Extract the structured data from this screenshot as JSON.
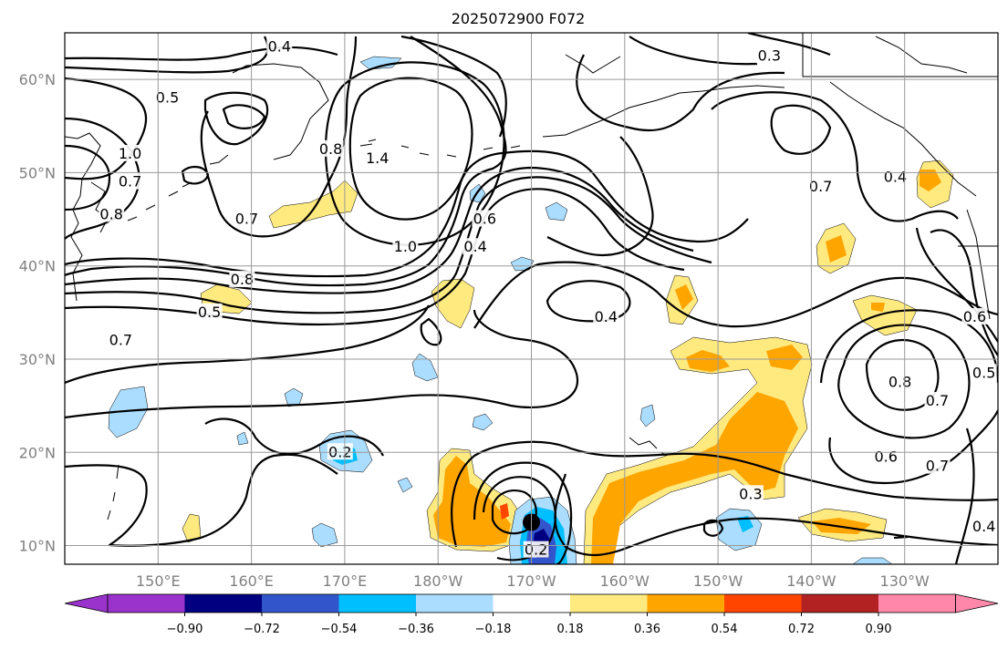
{
  "title": "2025072900 F072",
  "map": {
    "lon_ticks": [
      "150°E",
      "160°E",
      "170°E",
      "180°W",
      "170°W",
      "160°W",
      "150°W",
      "140°W",
      "130°W"
    ],
    "lat_ticks": [
      "60°N",
      "50°N",
      "40°N",
      "30°N",
      "20°N",
      "10°N"
    ],
    "lon_range": [
      140,
      240
    ],
    "lat_range": [
      8,
      65
    ]
  },
  "contour_labels": [
    {
      "text": "0.4",
      "lon": 163,
      "lat": 63.5
    },
    {
      "text": "0.5",
      "lon": 151,
      "lat": 58
    },
    {
      "text": "1.0",
      "lon": 147,
      "lat": 52
    },
    {
      "text": "0.7",
      "lon": 147,
      "lat": 49
    },
    {
      "text": "0.8",
      "lon": 145,
      "lat": 45.5
    },
    {
      "text": "0.8",
      "lon": 168.5,
      "lat": 52.5
    },
    {
      "text": "1.4",
      "lon": 173.5,
      "lat": 51.5
    },
    {
      "text": "0.7",
      "lon": 159.5,
      "lat": 45
    },
    {
      "text": "1.0",
      "lon": 176.5,
      "lat": 42
    },
    {
      "text": "0.6",
      "lon": 185,
      "lat": 45
    },
    {
      "text": "0.4",
      "lon": 184,
      "lat": 42
    },
    {
      "text": "0.8",
      "lon": 159,
      "lat": 38.5
    },
    {
      "text": "0.5",
      "lon": 155.5,
      "lat": 35
    },
    {
      "text": "0.7",
      "lon": 146,
      "lat": 32
    },
    {
      "text": "0.4",
      "lon": 198,
      "lat": 34.5
    },
    {
      "text": "0.3",
      "lon": 215.5,
      "lat": 62.5
    },
    {
      "text": "0.7",
      "lon": 221,
      "lat": 48.5
    },
    {
      "text": "0.4",
      "lon": 229,
      "lat": 49.5
    },
    {
      "text": "0.8",
      "lon": 229.5,
      "lat": 27.5
    },
    {
      "text": "0.7",
      "lon": 233.5,
      "lat": 25.5
    },
    {
      "text": "0.6",
      "lon": 237.5,
      "lat": 34.5
    },
    {
      "text": "0.5",
      "lon": 238.5,
      "lat": 28.5
    },
    {
      "text": "0.6",
      "lon": 228,
      "lat": 19.5
    },
    {
      "text": "0.7",
      "lon": 233.5,
      "lat": 18.5
    },
    {
      "text": "0.4",
      "lon": 238.5,
      "lat": 12
    },
    {
      "text": "0.3",
      "lon": 213.5,
      "lat": 15.5
    },
    {
      "text": "0.2",
      "lon": 169.5,
      "lat": 20
    },
    {
      "text": "0.2",
      "lon": 190.5,
      "lat": 9.5
    }
  ],
  "colorbar": {
    "ticks": [
      "−0.90",
      "−0.72",
      "−0.54",
      "−0.36",
      "−0.18",
      "0.18",
      "0.36",
      "0.54",
      "0.72",
      "0.90"
    ],
    "colors": [
      "#9933cc",
      "#000080",
      "#3355cc",
      "#00bfff",
      "#aaddff",
      "#ffffff",
      "#ffea80",
      "#ffa500",
      "#ff4500",
      "#b22222",
      "#ff88aa",
      "#ff88aa"
    ],
    "extend_low_color": "#9933cc",
    "extend_high_color": "#ff88aa"
  },
  "colors": {
    "pos1": "#ffea80",
    "pos2": "#ffa500",
    "pos3": "#ff4500",
    "neg1": "#aaddff",
    "neg2": "#00bfff",
    "neg3": "#3355cc",
    "neg4": "#000080"
  },
  "marker": {
    "lon": 190,
    "lat": 12.5,
    "icon": "storm-center-icon"
  }
}
